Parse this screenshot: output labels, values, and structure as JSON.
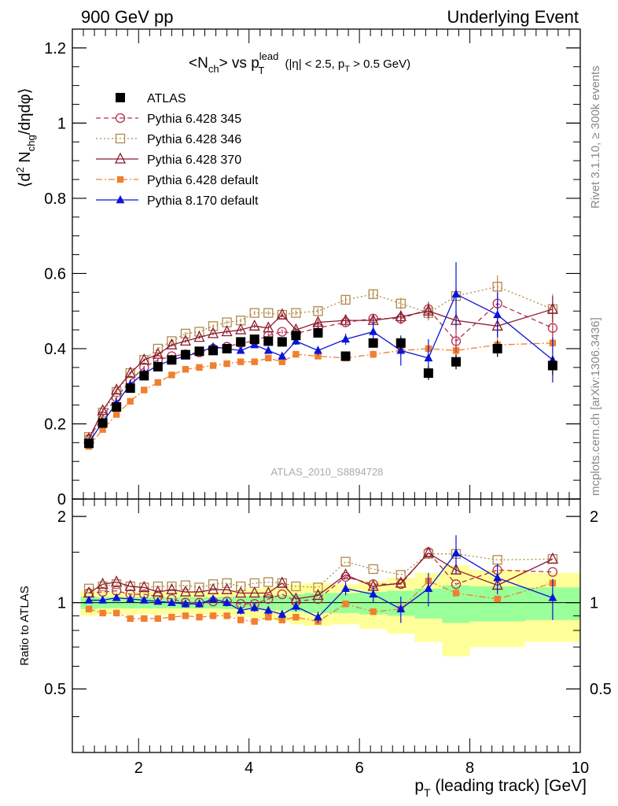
{
  "header": {
    "left": "900 GeV pp",
    "right": "Underlying Event"
  },
  "side": {
    "rivet": "Rivet 3.1.10, ≥ 300k events",
    "mcplots": "mcplots.cern.ch [arXiv:1306.3436]"
  },
  "watermark": "ATLAS_2010_S8894728",
  "chart_data": [
    {
      "type": "scatter",
      "panel": "main",
      "title": "<Nch> vs pT lead (|η| < 2.5, pT > 0.5 GeV)",
      "ylabel": "⟨d² Nchg/dηdφ⟩",
      "xlim": [
        0.8,
        10.0
      ],
      "ylim": [
        0,
        1.25
      ],
      "yticks": [
        0,
        0.2,
        0.4,
        0.6,
        0.8,
        1,
        1.2
      ],
      "ytick_labels": [
        "0",
        "0.2",
        "0.4",
        "0.6",
        "0.8",
        "1",
        "1.2"
      ],
      "grid": false,
      "legend_position": "top-left",
      "x": [
        1.1,
        1.35,
        1.6,
        1.85,
        2.1,
        2.35,
        2.6,
        2.85,
        3.1,
        3.35,
        3.6,
        3.85,
        4.1,
        4.35,
        4.6,
        4.85,
        5.25,
        5.75,
        6.25,
        6.75,
        7.25,
        7.75,
        8.5,
        9.5
      ],
      "series": [
        {
          "name": "ATLAS",
          "color": "#000000",
          "marker": "filled-square",
          "style": "none",
          "values": [
            0.148,
            0.202,
            0.245,
            0.295,
            0.328,
            0.352,
            0.37,
            0.384,
            0.393,
            0.395,
            0.4,
            0.418,
            0.425,
            0.42,
            0.418,
            0.435,
            0.442,
            0.38,
            0.415,
            0.415,
            0.335,
            0.365,
            0.4,
            0.355
          ],
          "errors": [
            0.004,
            0.004,
            0.004,
            0.004,
            0.004,
            0.004,
            0.004,
            0.004,
            0.004,
            0.004,
            0.004,
            0.005,
            0.005,
            0.005,
            0.006,
            0.006,
            0.008,
            0.01,
            0.012,
            0.015,
            0.018,
            0.02,
            0.022,
            0.025
          ]
        },
        {
          "name": "Pythia 6.428 345",
          "color": "#b33050",
          "marker": "open-circle",
          "style": "dashed",
          "values": [
            0.16,
            0.22,
            0.27,
            0.315,
            0.35,
            0.37,
            0.38,
            0.385,
            0.39,
            0.4,
            0.405,
            0.415,
            0.42,
            0.435,
            0.445,
            0.44,
            0.455,
            0.47,
            0.48,
            0.48,
            0.505,
            0.42,
            0.52,
            0.455
          ],
          "errors": [
            0.004,
            0.004,
            0.004,
            0.004,
            0.004,
            0.004,
            0.004,
            0.004,
            0.004,
            0.004,
            0.005,
            0.005,
            0.005,
            0.006,
            0.006,
            0.007,
            0.008,
            0.01,
            0.012,
            0.015,
            0.02,
            0.03,
            0.04,
            0.045
          ]
        },
        {
          "name": "Pythia 6.428 346",
          "color": "#b08a4a",
          "marker": "open-square",
          "style": "dotted",
          "values": [
            0.165,
            0.23,
            0.285,
            0.335,
            0.37,
            0.4,
            0.42,
            0.44,
            0.445,
            0.46,
            0.47,
            0.475,
            0.495,
            0.495,
            0.49,
            0.495,
            0.5,
            0.53,
            0.545,
            0.52,
            0.495,
            0.54,
            0.565,
            0.505
          ],
          "errors": [
            0.004,
            0.004,
            0.004,
            0.004,
            0.004,
            0.004,
            0.004,
            0.004,
            0.004,
            0.004,
            0.005,
            0.005,
            0.005,
            0.006,
            0.006,
            0.007,
            0.008,
            0.01,
            0.012,
            0.015,
            0.02,
            0.025,
            0.03,
            0.04
          ]
        },
        {
          "name": "Pythia 6.428 370",
          "color": "#8b1a2e",
          "marker": "open-triangle",
          "style": "solid",
          "values": [
            0.16,
            0.235,
            0.29,
            0.335,
            0.37,
            0.385,
            0.41,
            0.42,
            0.43,
            0.44,
            0.445,
            0.45,
            0.46,
            0.455,
            0.49,
            0.45,
            0.47,
            0.475,
            0.475,
            0.485,
            0.5,
            0.475,
            0.46,
            0.505
          ],
          "errors": [
            0.004,
            0.004,
            0.004,
            0.004,
            0.004,
            0.004,
            0.004,
            0.004,
            0.004,
            0.004,
            0.005,
            0.005,
            0.005,
            0.006,
            0.006,
            0.007,
            0.008,
            0.01,
            0.012,
            0.015,
            0.02,
            0.025,
            0.03,
            0.035
          ]
        },
        {
          "name": "Pythia 6.428 default",
          "color": "#f08030",
          "marker": "filled-square-small",
          "style": "dashdot",
          "values": [
            0.14,
            0.185,
            0.225,
            0.26,
            0.29,
            0.31,
            0.33,
            0.345,
            0.35,
            0.355,
            0.36,
            0.365,
            0.365,
            0.375,
            0.365,
            0.385,
            0.38,
            0.375,
            0.385,
            0.395,
            0.4,
            0.395,
            0.41,
            0.415
          ],
          "errors": [
            0.003,
            0.003,
            0.003,
            0.003,
            0.003,
            0.003,
            0.003,
            0.003,
            0.003,
            0.003,
            0.004,
            0.004,
            0.004,
            0.005,
            0.005,
            0.006,
            0.007,
            0.008,
            0.01,
            0.012,
            0.015,
            0.018,
            0.02,
            0.025
          ]
        },
        {
          "name": "Pythia 8.170 default",
          "color": "#0a14d8",
          "marker": "filled-triangle",
          "style": "solid",
          "values": [
            0.15,
            0.205,
            0.255,
            0.305,
            0.335,
            0.355,
            0.37,
            0.38,
            0.39,
            0.405,
            0.4,
            0.395,
            0.41,
            0.395,
            0.38,
            0.42,
            0.395,
            0.425,
            0.445,
            0.395,
            0.375,
            0.545,
            0.49,
            0.37
          ],
          "errors": [
            0.004,
            0.004,
            0.004,
            0.004,
            0.004,
            0.004,
            0.004,
            0.004,
            0.004,
            0.004,
            0.005,
            0.006,
            0.007,
            0.008,
            0.009,
            0.01,
            0.012,
            0.015,
            0.025,
            0.04,
            0.05,
            0.085,
            0.06,
            0.06
          ]
        }
      ]
    },
    {
      "type": "scatter",
      "panel": "ratio",
      "ylabel": "Ratio to ATLAS",
      "xlabel": "pT (leading track) [GeV]",
      "xlim": [
        0.8,
        10.0
      ],
      "ylim": [
        0.3,
        2.3
      ],
      "yticks": [
        0.5,
        1,
        2
      ],
      "ytick_labels": [
        "0.5",
        "1",
        "2"
      ],
      "xticks": [
        2,
        4,
        6,
        8,
        10
      ],
      "xtick_labels": [
        "2",
        "4",
        "6",
        "8",
        "10"
      ],
      "reference_line": 1,
      "uncertainty_bands": {
        "edges": [
          0.95,
          1.25,
          1.5,
          1.75,
          2.0,
          2.25,
          2.5,
          2.75,
          3.0,
          3.25,
          3.5,
          3.75,
          4.0,
          4.25,
          4.5,
          4.75,
          5.0,
          5.5,
          6.0,
          6.5,
          7.0,
          7.5,
          8.0,
          9.0,
          10.0
        ],
        "inner": [
          0.05,
          0.045,
          0.045,
          0.045,
          0.045,
          0.045,
          0.045,
          0.045,
          0.045,
          0.045,
          0.05,
          0.05,
          0.055,
          0.06,
          0.06,
          0.07,
          0.08,
          0.08,
          0.09,
          0.1,
          0.12,
          0.15,
          0.14,
          0.13
        ],
        "outer": [
          0.1,
          0.09,
          0.09,
          0.09,
          0.09,
          0.09,
          0.09,
          0.09,
          0.09,
          0.09,
          0.1,
          0.11,
          0.12,
          0.13,
          0.14,
          0.16,
          0.17,
          0.16,
          0.19,
          0.22,
          0.27,
          0.35,
          0.3,
          0.27
        ],
        "inner_color": "#99ff99",
        "outer_color": "#ffff99"
      },
      "series": [
        {
          "name": "Pythia 6.428 345",
          "color": "#b33050",
          "values": [
            1.08,
            1.09,
            1.1,
            1.07,
            1.07,
            1.05,
            1.03,
            1.0,
            1.0,
            1.01,
            1.01,
            0.99,
            0.99,
            1.03,
            1.07,
            1.01,
            1.03,
            1.23,
            1.16,
            1.16,
            1.5,
            1.16,
            1.3,
            1.28
          ]
        },
        {
          "name": "Pythia 6.428 346",
          "color": "#b08a4a",
          "values": [
            1.12,
            1.14,
            1.16,
            1.14,
            1.13,
            1.14,
            1.14,
            1.15,
            1.13,
            1.16,
            1.17,
            1.14,
            1.17,
            1.18,
            1.17,
            1.14,
            1.13,
            1.39,
            1.31,
            1.25,
            1.48,
            1.48,
            1.41,
            1.42
          ]
        },
        {
          "name": "Pythia 6.428 370",
          "color": "#8b1a2e",
          "values": [
            1.08,
            1.16,
            1.18,
            1.14,
            1.13,
            1.09,
            1.11,
            1.09,
            1.09,
            1.11,
            1.11,
            1.08,
            1.08,
            1.08,
            1.17,
            1.03,
            1.06,
            1.25,
            1.14,
            1.17,
            1.49,
            1.3,
            1.15,
            1.42
          ]
        },
        {
          "name": "Pythia 6.428 default",
          "color": "#f08030",
          "values": [
            0.95,
            0.92,
            0.92,
            0.88,
            0.88,
            0.88,
            0.89,
            0.9,
            0.89,
            0.9,
            0.9,
            0.87,
            0.86,
            0.89,
            0.87,
            0.89,
            0.86,
            0.99,
            0.93,
            0.95,
            1.19,
            1.08,
            1.03,
            1.17
          ]
        },
        {
          "name": "Pythia 8.170 default",
          "color": "#0a14d8",
          "values": [
            1.02,
            1.02,
            1.04,
            1.03,
            1.02,
            1.01,
            1.0,
            0.99,
            0.99,
            1.03,
            1.0,
            0.94,
            0.96,
            0.94,
            0.91,
            0.97,
            0.89,
            1.12,
            1.07,
            0.95,
            1.12,
            1.49,
            1.22,
            1.04
          ],
          "errors": [
            0.02,
            0.02,
            0.02,
            0.02,
            0.02,
            0.02,
            0.02,
            0.02,
            0.02,
            0.02,
            0.02,
            0.03,
            0.03,
            0.03,
            0.03,
            0.04,
            0.04,
            0.06,
            0.07,
            0.1,
            0.15,
            0.23,
            0.15,
            0.17
          ]
        }
      ]
    }
  ]
}
